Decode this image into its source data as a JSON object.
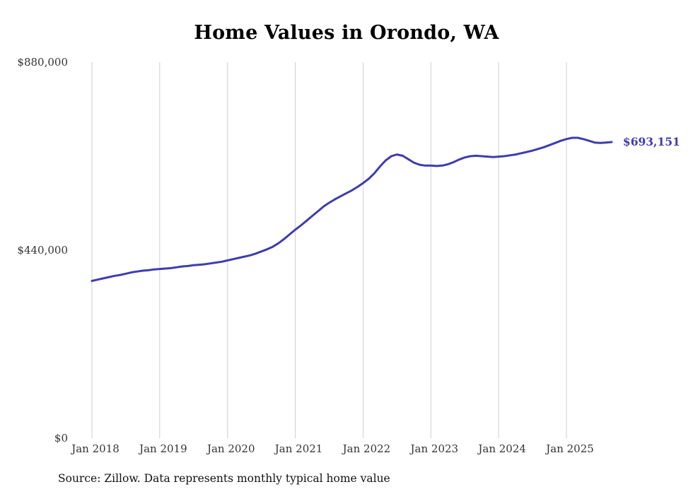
{
  "title": "Home Values in Orondo, WA",
  "end_label": "$693,151",
  "source_note": "Source: Zillow. Data represents monthly typical home value",
  "colors": {
    "line": "#3e3cb0",
    "grid": "#cfcfcf",
    "annotation": "#3e3cb0",
    "tick_text": "#333333",
    "title_text": "#000000"
  },
  "chart_data": {
    "type": "line",
    "title": "Home Values in Orondo, WA",
    "xlabel": "",
    "ylabel": "",
    "ylim": [
      0,
      880000
    ],
    "grid": "vertical-only",
    "legend": "none",
    "y_ticks": [
      {
        "label": "$0",
        "value": 0
      },
      {
        "label": "$440,000",
        "value": 440000
      },
      {
        "label": "$880,000",
        "value": 880000
      }
    ],
    "x_tick_labels": [
      "Jan 2018",
      "Jan 2019",
      "Jan 2020",
      "Jan 2021",
      "Jan 2022",
      "Jan 2023",
      "Jan 2024",
      "Jan 2025"
    ],
    "annotation": {
      "text": "$693,151",
      "position": "end-of-line"
    },
    "latest_value": 693151,
    "series": [
      {
        "name": "Typical home value",
        "start_month": "Jan 2018",
        "frequency": "monthly",
        "values": [
          368000,
          371000,
          374000,
          377000,
          380000,
          382000,
          385000,
          388000,
          390000,
          392000,
          393000,
          395000,
          396000,
          397000,
          398000,
          400000,
          402000,
          403000,
          405000,
          406000,
          407000,
          409000,
          411000,
          413000,
          416000,
          419000,
          422000,
          425000,
          428000,
          432000,
          437000,
          442000,
          448000,
          456000,
          466000,
          477000,
          488000,
          498000,
          509000,
          520000,
          531000,
          542000,
          551000,
          559000,
          566000,
          573000,
          580000,
          588000,
          597000,
          607000,
          620000,
          636000,
          650000,
          660000,
          664000,
          661000,
          653000,
          645000,
          640000,
          638000,
          638000,
          637000,
          638000,
          641000,
          646000,
          652000,
          657000,
          660000,
          661000,
          660000,
          659000,
          658000,
          659000,
          660000,
          662000,
          664000,
          667000,
          670000,
          673000,
          677000,
          681000,
          686000,
          691000,
          696000,
          700000,
          703000,
          703000,
          700000,
          696000,
          692000,
          691000,
          692000,
          693151
        ]
      }
    ]
  }
}
